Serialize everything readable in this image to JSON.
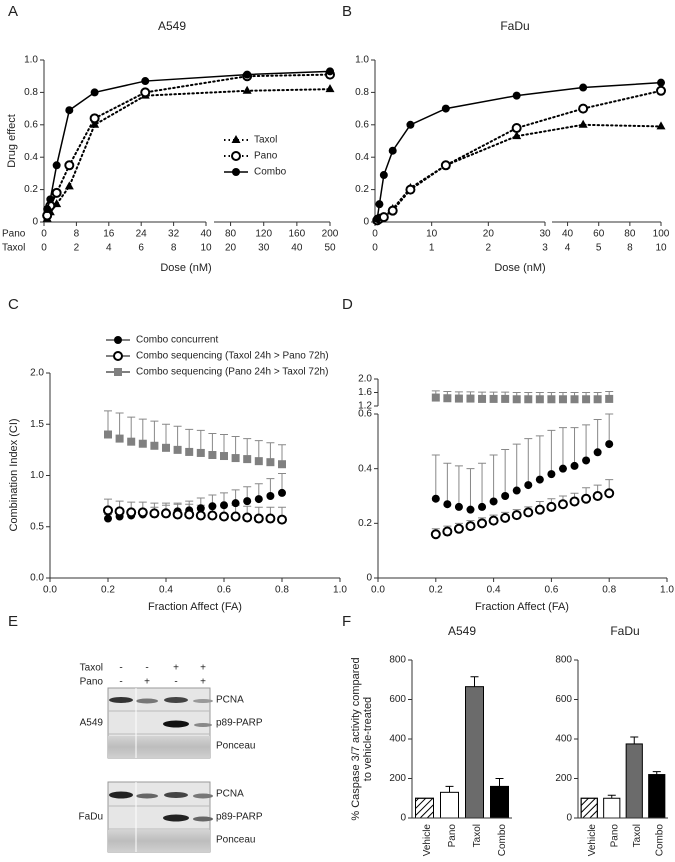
{
  "chart_data": [
    {
      "type": "line",
      "panel_label": "A",
      "title": "A549",
      "ylabel": "Drug effect",
      "xlabel": "Dose (nM)",
      "x_row_labels": [
        "Pano",
        "Taxol"
      ],
      "ylim": [
        0,
        1.0
      ],
      "yticks": [
        0,
        0.2,
        0.4,
        0.6,
        0.8,
        {
          "value": 1.0,
          "label": "1.0"
        }
      ],
      "x_segments": [
        {
          "xlim": [
            0,
            40
          ],
          "xticks": [
            0,
            8,
            16,
            24,
            32,
            40
          ],
          "x2ticks": [
            0,
            2,
            4,
            6,
            8,
            10
          ]
        },
        {
          "xlim": [
            60,
            200
          ],
          "xticks": [
            80,
            120,
            160,
            200
          ],
          "x2ticks": [
            20,
            30,
            40,
            50
          ]
        }
      ],
      "x": [
        0.78,
        1.56,
        3.125,
        6.25,
        12.5,
        25,
        100,
        200
      ],
      "legend": true,
      "series": [
        {
          "name": "Taxol",
          "color": "#000000",
          "marker": "triangle",
          "dashed": true,
          "values": [
            0.02,
            0.06,
            0.11,
            0.22,
            0.6,
            0.78,
            0.81,
            0.82
          ]
        },
        {
          "name": "Pano",
          "color": "#000000",
          "marker": "open-circle",
          "dashed": true,
          "values": [
            0.04,
            0.1,
            0.18,
            0.35,
            0.64,
            0.8,
            0.9,
            0.91
          ]
        },
        {
          "name": "Combo",
          "color": "#000000",
          "marker": "circle",
          "dashed": false,
          "values": [
            0.08,
            0.14,
            0.35,
            0.69,
            0.8,
            0.87,
            0.91,
            0.93
          ]
        }
      ]
    },
    {
      "type": "line",
      "panel_label": "B",
      "title": "FaDu",
      "xlabel": "Dose (nM)",
      "ylim": [
        0,
        1.0
      ],
      "yticks": [
        0,
        0.2,
        0.4,
        0.6,
        0.8,
        {
          "value": 1.0,
          "label": "1.0"
        }
      ],
      "x_segments": [
        {
          "xlim": [
            0,
            30
          ],
          "xticks": [
            0,
            10,
            20,
            30
          ],
          "x2ticks": [
            0,
            1,
            2,
            3
          ]
        },
        {
          "xlim": [
            30,
            100
          ],
          "xticks": [
            40,
            60,
            80,
            100
          ],
          "x2ticks": [
            4,
            5,
            8,
            10
          ]
        }
      ],
      "x": [
        0.39,
        0.78,
        1.56,
        3.125,
        6.25,
        12.5,
        25,
        50,
        100
      ],
      "series": [
        {
          "color": "#000000",
          "marker": "triangle",
          "dashed": true,
          "values": [
            0.01,
            0.02,
            0.03,
            0.08,
            0.21,
            0.35,
            0.53,
            0.6,
            0.59
          ]
        },
        {
          "color": "#000000",
          "marker": "open-circle",
          "dashed": true,
          "values": [
            0.01,
            0.02,
            0.03,
            0.07,
            0.2,
            0.35,
            0.58,
            0.7,
            0.81
          ]
        },
        {
          "color": "#000000",
          "marker": "circle",
          "dashed": false,
          "values": [
            0.02,
            0.11,
            0.29,
            0.44,
            0.6,
            0.7,
            0.78,
            0.83,
            0.86
          ]
        }
      ]
    },
    {
      "type": "scatter",
      "panel_label": "C",
      "ylabel": "Combination Index (CI)",
      "xlabel": "Fraction Affect (FA)",
      "xlim": [
        0,
        1.0
      ],
      "xticks": [
        {
          "value": 0,
          "label": "0.0"
        },
        0.2,
        0.4,
        0.6,
        0.8,
        {
          "value": 1.0,
          "label": "1.0"
        }
      ],
      "ylim": [
        0,
        2.0
      ],
      "yticks": [
        {
          "value": 0,
          "label": "0.0"
        },
        0.5,
        {
          "value": 1.0,
          "label": "1.0"
        },
        1.5,
        {
          "value": 2.0,
          "label": "2.0"
        }
      ],
      "x": [
        0.2,
        0.24,
        0.28,
        0.32,
        0.36,
        0.4,
        0.44,
        0.48,
        0.52,
        0.56,
        0.6,
        0.64,
        0.68,
        0.72,
        0.76,
        0.8
      ],
      "series": [
        {
          "name": "Combo concurrent",
          "color": "#000000",
          "marker": "circle",
          "values": [
            0.58,
            0.6,
            0.61,
            0.62,
            0.63,
            0.64,
            0.65,
            0.66,
            0.68,
            0.7,
            0.71,
            0.73,
            0.75,
            0.77,
            0.8,
            0.83
          ],
          "errors": [
            0.04,
            0.05,
            0.05,
            0.05,
            0.06,
            0.07,
            0.08,
            0.09,
            0.1,
            0.11,
            0.12,
            0.13,
            0.14,
            0.15,
            0.17,
            0.19
          ]
        },
        {
          "name": "Combo sequencing (Taxol 24h > Pano 72h)",
          "color": "#000000",
          "marker": "open-circle",
          "values": [
            0.66,
            0.65,
            0.64,
            0.64,
            0.63,
            0.63,
            0.62,
            0.62,
            0.61,
            0.61,
            0.6,
            0.6,
            0.59,
            0.58,
            0.58,
            0.57
          ],
          "errors": [
            0.11,
            0.1,
            0.1,
            0.1,
            0.1,
            0.1,
            0.1,
            0.1,
            0.1,
            0.1,
            0.11,
            0.11,
            0.11,
            0.11,
            0.11,
            0.12
          ]
        },
        {
          "name": "Combo sequencing (Pano 24h > Taxol 72h)",
          "color": "#808080",
          "marker": "square",
          "values": [
            1.4,
            1.36,
            1.33,
            1.31,
            1.29,
            1.27,
            1.25,
            1.23,
            1.22,
            1.2,
            1.19,
            1.17,
            1.16,
            1.14,
            1.13,
            1.11
          ],
          "errors": [
            0.23,
            0.25,
            0.24,
            0.24,
            0.24,
            0.23,
            0.23,
            0.22,
            0.22,
            0.21,
            0.21,
            0.21,
            0.2,
            0.2,
            0.19,
            0.19
          ]
        }
      ]
    },
    {
      "type": "scatter",
      "panel_label": "D",
      "xlabel": "Fraction Affect (FA)",
      "xlim": [
        0,
        1.0
      ],
      "xticks": [
        {
          "value": 0,
          "label": "0.0"
        },
        0.2,
        0.4,
        0.6,
        0.8,
        {
          "value": 1.0,
          "label": "1.0"
        }
      ],
      "y_segments": [
        {
          "ylim": [
            0,
            0.6
          ],
          "yticks": [
            0,
            0.2,
            0.4,
            0.6
          ]
        },
        {
          "ylim": [
            1.2,
            2.0
          ],
          "yticks": [
            1.2,
            1.6,
            {
              "value": 2.0,
              "label": "2.0"
            }
          ]
        }
      ],
      "x": [
        0.2,
        0.24,
        0.28,
        0.32,
        0.36,
        0.4,
        0.44,
        0.48,
        0.52,
        0.56,
        0.6,
        0.64,
        0.68,
        0.72,
        0.76,
        0.8
      ],
      "series": [
        {
          "color": "#000000",
          "marker": "circle",
          "values": [
            0.29,
            0.27,
            0.26,
            0.25,
            0.26,
            0.28,
            0.3,
            0.32,
            0.34,
            0.36,
            0.38,
            0.4,
            0.41,
            0.43,
            0.46,
            0.49
          ],
          "errors": [
            0.16,
            0.15,
            0.15,
            0.15,
            0.16,
            0.17,
            0.17,
            0.17,
            0.17,
            0.16,
            0.16,
            0.15,
            0.14,
            0.13,
            0.12,
            0.11
          ]
        },
        {
          "color": "#000000",
          "marker": "open-circle",
          "values": [
            0.16,
            0.17,
            0.18,
            0.19,
            0.2,
            0.21,
            0.22,
            0.23,
            0.24,
            0.25,
            0.26,
            0.27,
            0.28,
            0.29,
            0.3,
            0.31
          ],
          "errors": [
            0.02,
            0.02,
            0.02,
            0.02,
            0.02,
            0.02,
            0.02,
            0.02,
            0.02,
            0.03,
            0.03,
            0.03,
            0.03,
            0.04,
            0.04,
            0.05
          ]
        },
        {
          "color": "#808080",
          "marker": "square",
          "values": [
            1.45,
            1.43,
            1.42,
            1.42,
            1.41,
            1.41,
            1.41,
            1.4,
            1.4,
            1.4,
            1.4,
            1.4,
            1.4,
            1.4,
            1.4,
            1.41
          ],
          "errors": [
            0.2,
            0.2,
            0.2,
            0.2,
            0.2,
            0.2,
            0.2,
            0.2,
            0.2,
            0.2,
            0.2,
            0.2,
            0.2,
            0.2,
            0.2,
            0.22
          ]
        }
      ]
    },
    {
      "type": "bar",
      "panel_label": "F",
      "title": "A549",
      "ylabel": [
        "% Caspase 3/7 activity compared",
        "to vehicle-treated"
      ],
      "categories": [
        "Vehicle",
        "Pano",
        "Taxol",
        "Combo"
      ],
      "values": [
        100,
        130,
        665,
        160
      ],
      "errors": [
        null,
        30,
        50,
        40
      ],
      "colors": [
        "#ffffff",
        "#ffffff",
        "#6b6b6b",
        "#000000"
      ],
      "hatch": [
        true,
        false,
        false,
        false
      ],
      "ylim": [
        0,
        800
      ],
      "yticks": [
        0,
        200,
        400,
        600,
        800
      ]
    },
    {
      "type": "bar",
      "title": "FaDu",
      "categories": [
        "Vehicle",
        "Pano",
        "Taxol",
        "Combo"
      ],
      "values": [
        100,
        100,
        375,
        220
      ],
      "errors": [
        null,
        15,
        35,
        15
      ],
      "colors": [
        "#ffffff",
        "#ffffff",
        "#6b6b6b",
        "#000000"
      ],
      "hatch": [
        true,
        false,
        false,
        false
      ],
      "ylim": [
        0,
        800
      ],
      "yticks": [
        0,
        200,
        400,
        600,
        800
      ]
    }
  ],
  "blot": {
    "panel_label": "E",
    "treatments": [
      {
        "name": "Taxol",
        "signs": [
          "-",
          "-",
          "+",
          "+"
        ]
      },
      {
        "name": "Pano",
        "signs": [
          "-",
          "+",
          "-",
          "+"
        ]
      }
    ],
    "blocks": [
      {
        "cell_line": "A549",
        "rows": [
          "PCNA",
          "p89-PARP",
          "Ponceau"
        ]
      },
      {
        "cell_line": "FaDu",
        "rows": [
          "PCNA",
          "p89-PARP",
          "Ponceau"
        ]
      }
    ]
  }
}
